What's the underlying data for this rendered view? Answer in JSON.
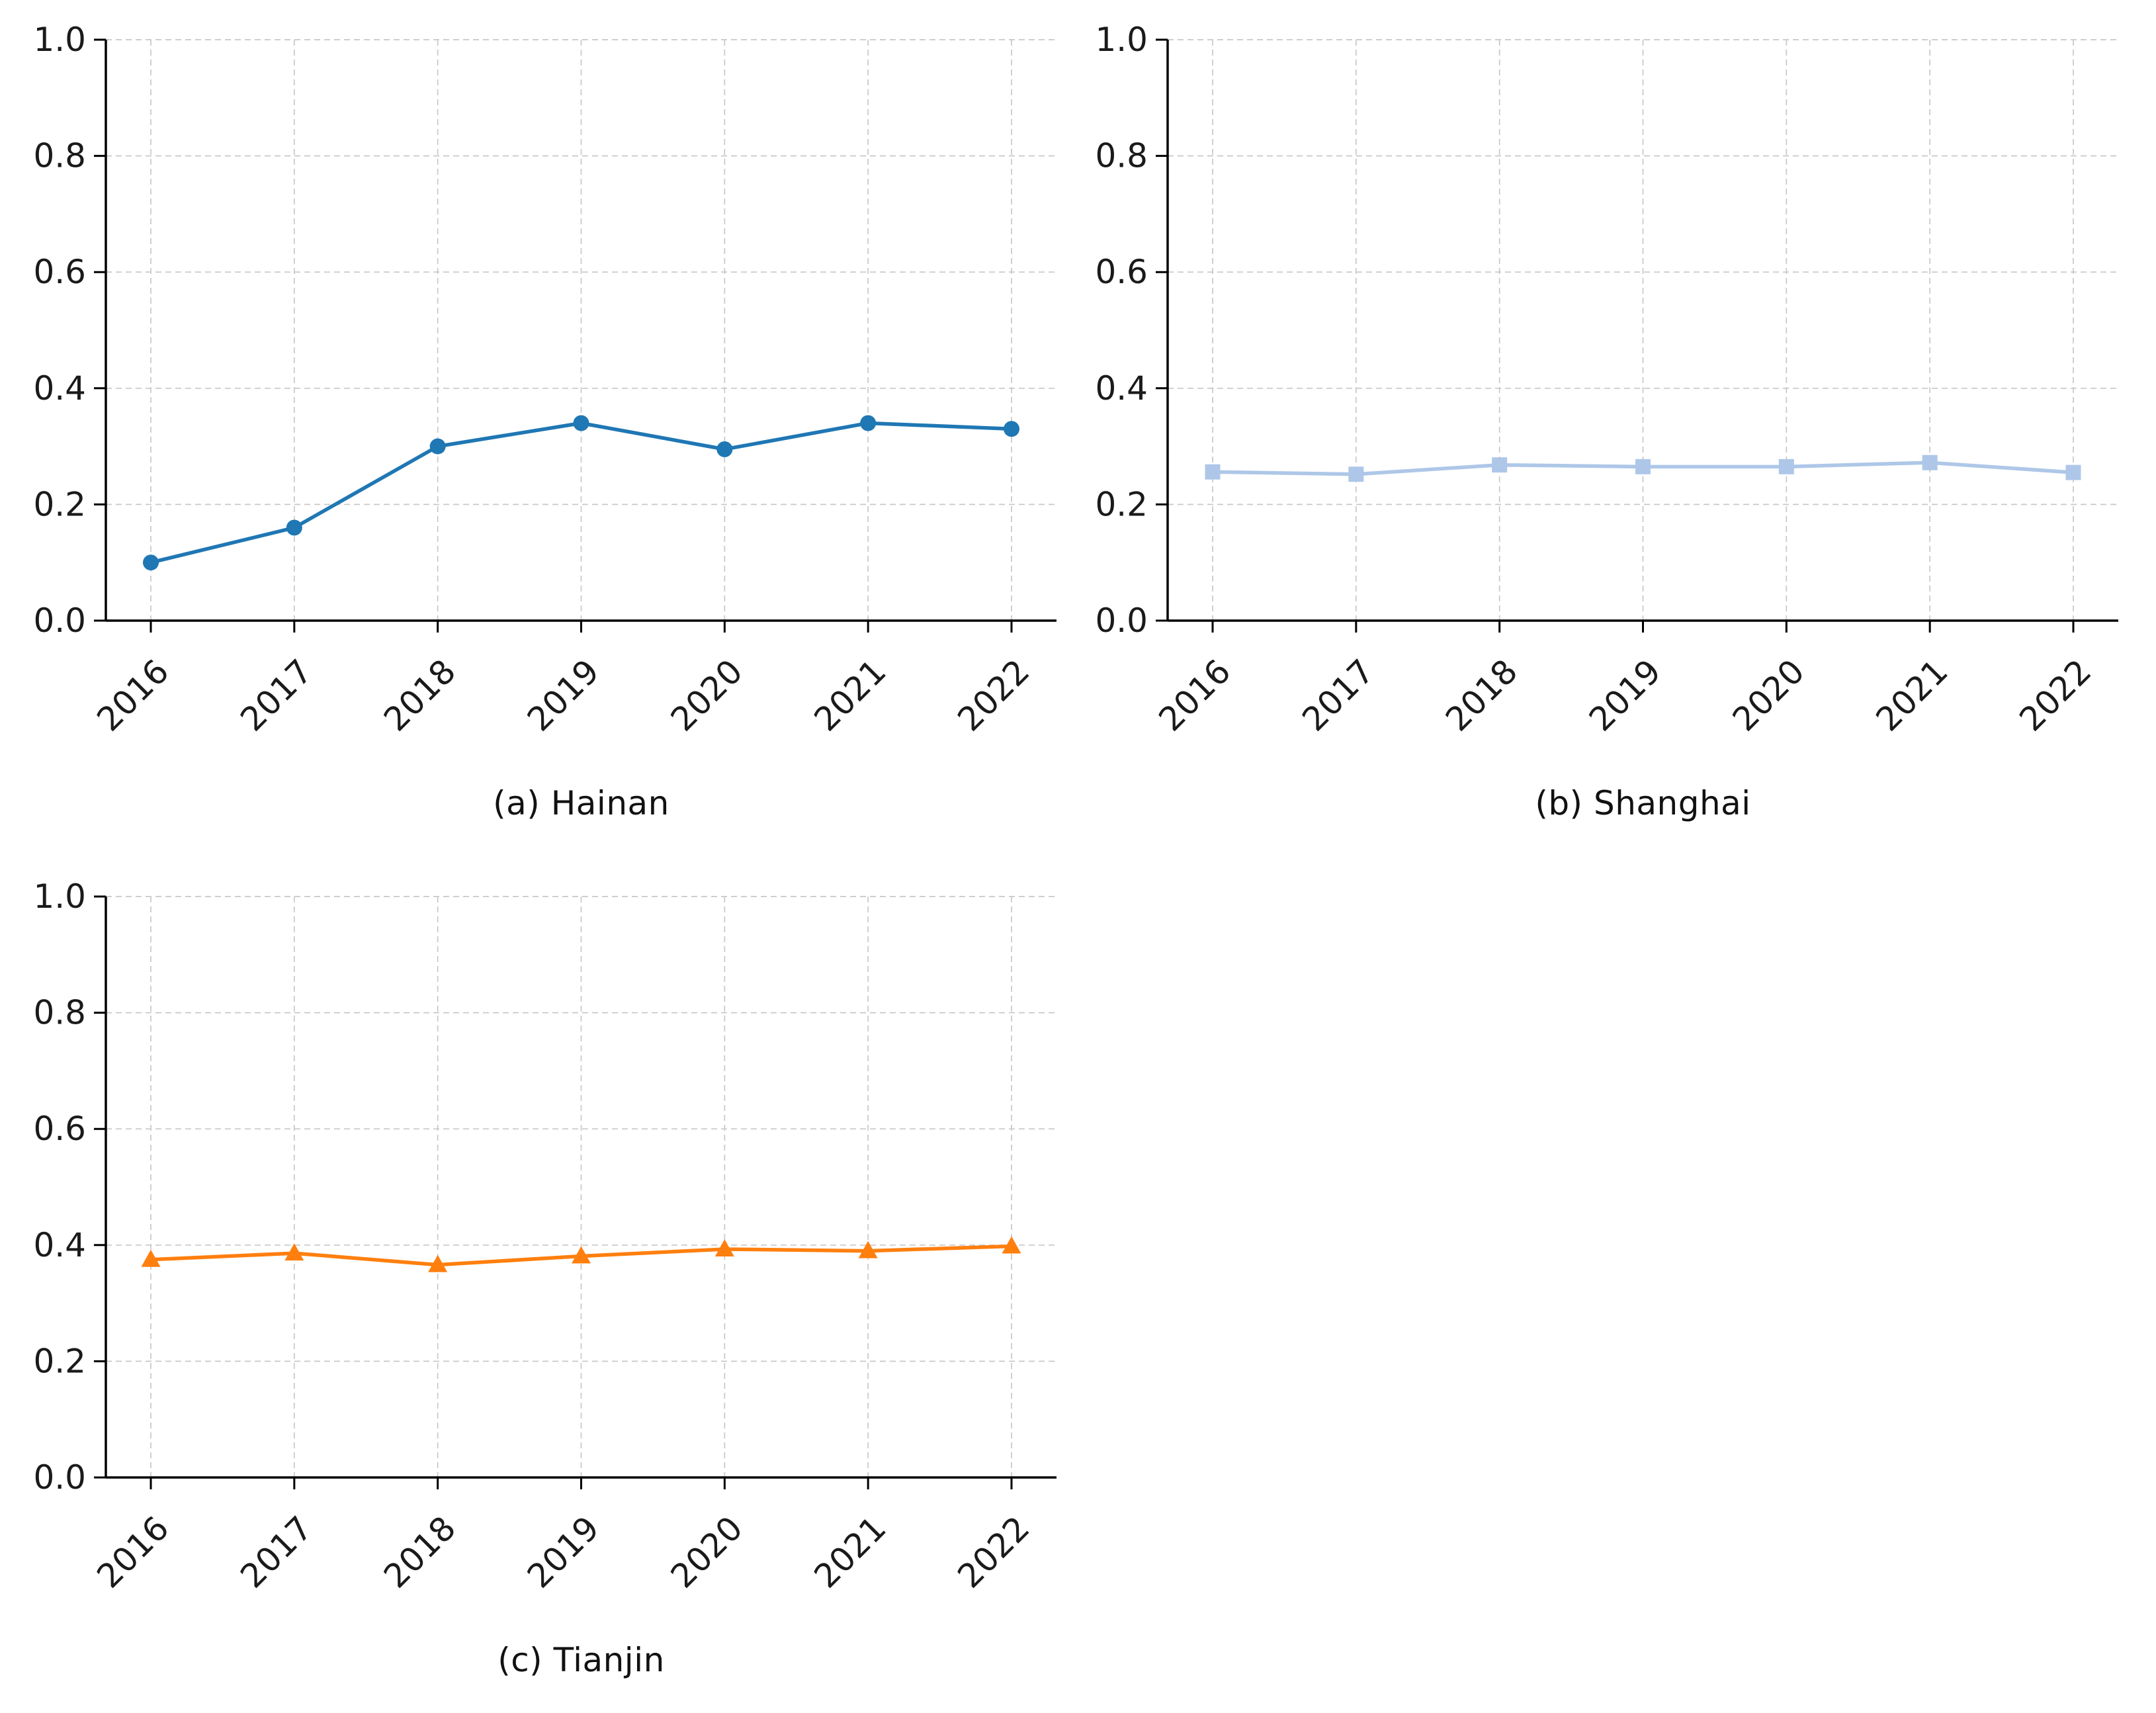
{
  "figure": {
    "background": "#ffffff",
    "grid_color": "#c8c8c8",
    "axis_color": "#000000",
    "tick_label_color": "#1a1a1a"
  },
  "chart_data": [
    {
      "id": "hainan",
      "type": "line",
      "caption": "(a) Hainan",
      "x_labels": [
        "2016",
        "2017",
        "2018",
        "2019",
        "2020",
        "2021",
        "2022"
      ],
      "series": [
        {
          "name": "Hainan",
          "marker": "circle",
          "color": "#1f77b4",
          "values": [
            0.1,
            0.16,
            0.3,
            0.34,
            0.295,
            0.34,
            0.33
          ]
        }
      ],
      "ylim": [
        0.0,
        1.0
      ],
      "yticks": [
        0.0,
        0.2,
        0.4,
        0.6,
        0.8,
        1.0
      ],
      "ytick_labels": [
        "0.0",
        "0.2",
        "0.4",
        "0.6",
        "0.8",
        "1.0"
      ],
      "grid": "dashed",
      "legend": "none"
    },
    {
      "id": "shanghai",
      "type": "line",
      "caption": "(b) Shanghai",
      "x_labels": [
        "2016",
        "2017",
        "2018",
        "2019",
        "2020",
        "2021",
        "2022"
      ],
      "series": [
        {
          "name": "Shanghai",
          "marker": "square",
          "color": "#aec7e8",
          "values": [
            0.256,
            0.252,
            0.268,
            0.265,
            0.265,
            0.272,
            0.255
          ]
        }
      ],
      "ylim": [
        0.0,
        1.0
      ],
      "yticks": [
        0.0,
        0.2,
        0.4,
        0.6,
        0.8,
        1.0
      ],
      "ytick_labels": [
        "0.0",
        "0.2",
        "0.4",
        "0.6",
        "0.8",
        "1.0"
      ],
      "grid": "dashed",
      "legend": "none"
    },
    {
      "id": "tianjin",
      "type": "line",
      "caption": "(c) Tianjin",
      "x_labels": [
        "2016",
        "2017",
        "2018",
        "2019",
        "2020",
        "2021",
        "2022"
      ],
      "series": [
        {
          "name": "Tianjin",
          "marker": "triangle",
          "color": "#ff7f0e",
          "values": [
            0.375,
            0.386,
            0.366,
            0.381,
            0.393,
            0.39,
            0.398
          ]
        }
      ],
      "ylim": [
        0.0,
        1.0
      ],
      "yticks": [
        0.0,
        0.2,
        0.4,
        0.6,
        0.8,
        1.0
      ],
      "ytick_labels": [
        "0.0",
        "0.2",
        "0.4",
        "0.6",
        "0.8",
        "1.0"
      ],
      "grid": "dashed",
      "legend": "none"
    }
  ]
}
